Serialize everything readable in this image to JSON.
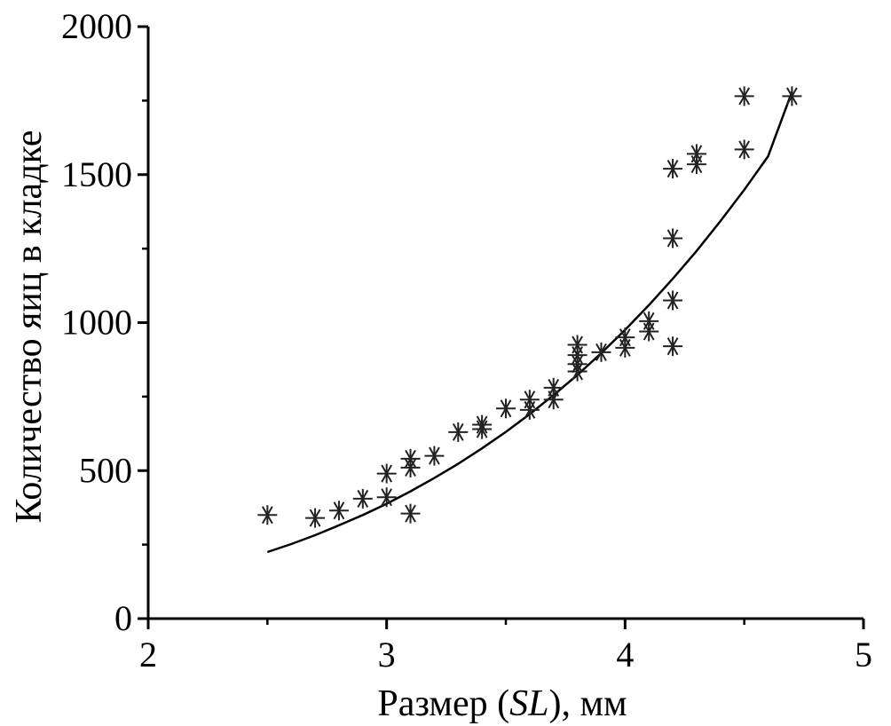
{
  "chart_data": {
    "type": "scatter",
    "title": "",
    "xlabel_parts": [
      "Размер (",
      "SL",
      "), мм"
    ],
    "ylabel": "Количество яиц в кладке",
    "xlim": [
      2,
      5
    ],
    "ylim": [
      0,
      2000
    ],
    "xticks": [
      2,
      3,
      4,
      5
    ],
    "yticks": [
      0,
      500,
      1000,
      1500,
      2000
    ],
    "xtick_labels": [
      "2",
      "3",
      "4",
      "5"
    ],
    "ytick_labels": [
      "0",
      "500",
      "1000",
      "1500",
      "2000"
    ],
    "grid": false,
    "legend": "none",
    "marker": "asterisk",
    "colors": {
      "marks": "#222222",
      "axes": "#000000"
    },
    "points": [
      [
        2.5,
        350
      ],
      [
        2.7,
        340
      ],
      [
        2.8,
        365
      ],
      [
        2.9,
        405
      ],
      [
        3.0,
        410
      ],
      [
        3.0,
        490
      ],
      [
        3.1,
        355
      ],
      [
        3.1,
        510
      ],
      [
        3.1,
        540
      ],
      [
        3.2,
        550
      ],
      [
        3.3,
        630
      ],
      [
        3.4,
        640
      ],
      [
        3.4,
        655
      ],
      [
        3.5,
        710
      ],
      [
        3.6,
        705
      ],
      [
        3.6,
        740
      ],
      [
        3.7,
        740
      ],
      [
        3.7,
        780
      ],
      [
        3.8,
        835
      ],
      [
        3.8,
        860
      ],
      [
        3.8,
        890
      ],
      [
        3.8,
        925
      ],
      [
        3.9,
        900
      ],
      [
        4.0,
        915
      ],
      [
        4.0,
        950
      ],
      [
        4.1,
        970
      ],
      [
        4.1,
        1005
      ],
      [
        4.2,
        920
      ],
      [
        4.2,
        1075
      ],
      [
        4.2,
        1285
      ],
      [
        4.2,
        1520
      ],
      [
        4.3,
        1535
      ],
      [
        4.3,
        1570
      ],
      [
        4.5,
        1585
      ],
      [
        4.5,
        1765
      ],
      [
        4.7,
        1765
      ]
    ],
    "fit_curve": [
      [
        2.5,
        225
      ],
      [
        2.6,
        252
      ],
      [
        2.7,
        282
      ],
      [
        2.8,
        315
      ],
      [
        2.9,
        350
      ],
      [
        3.0,
        388
      ],
      [
        3.1,
        430
      ],
      [
        3.2,
        475
      ],
      [
        3.3,
        523
      ],
      [
        3.4,
        575
      ],
      [
        3.5,
        631
      ],
      [
        3.6,
        691
      ],
      [
        3.7,
        755
      ],
      [
        3.8,
        823
      ],
      [
        3.9,
        897
      ],
      [
        4.0,
        975
      ],
      [
        4.1,
        1059
      ],
      [
        4.2,
        1148
      ],
      [
        4.3,
        1242
      ],
      [
        4.4,
        1343
      ],
      [
        4.5,
        1449
      ],
      [
        4.6,
        1562
      ],
      [
        4.7,
        1780
      ]
    ]
  }
}
